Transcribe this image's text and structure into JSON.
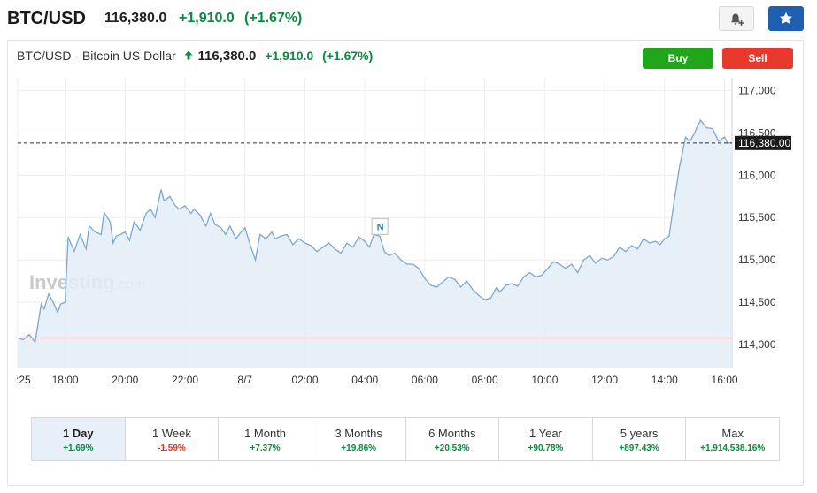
{
  "header": {
    "symbol": "BTC/USD",
    "price": "116,380.0",
    "change": "+1,910.0",
    "change_pct": "(+1.67%)"
  },
  "chart_header": {
    "name": "BTC/USD - Bitcoin US Dollar",
    "price": "116,380.0",
    "change": "+1,910.0",
    "change_pct": "(+1.67%)"
  },
  "trade": {
    "buy_label": "Buy",
    "sell_label": "Sell"
  },
  "icons": {
    "alert": "bell-plus-icon",
    "watchlist": "star-icon"
  },
  "colors": {
    "positive": "#0a8a3e",
    "negative": "#e0331f",
    "line": "#7aa8d2",
    "area": "#e3edf6",
    "buy": "#20a51b",
    "sell": "#e8392c",
    "watchlist": "#1f5fb0"
  },
  "chart_data": {
    "type": "area",
    "watermark": "Investing.com",
    "x_tick_labels": [
      ":25",
      "18:00",
      "20:00",
      "22:00",
      "8/7",
      "02:00",
      "04:00",
      "06:00",
      "08:00",
      "10:00",
      "12:00",
      "14:00",
      "16:00"
    ],
    "y_tick_labels": [
      "114,000",
      "114,500",
      "115,000",
      "115,500",
      "116,000",
      "116,500",
      "117,000"
    ],
    "y_ticks": [
      114000,
      114500,
      115000,
      115500,
      116000,
      116500,
      117000
    ],
    "ylim": [
      113730,
      117150
    ],
    "x_range_hours": [
      16.417,
      40.25
    ],
    "reference_line": 114080,
    "current_price": 116380,
    "current_price_label": "116,380.00",
    "news_marker": {
      "label": "N",
      "x": 28.5
    },
    "grid": true,
    "x": [
      16.42,
      16.6,
      16.8,
      17.0,
      17.2,
      17.3,
      17.45,
      17.6,
      17.75,
      17.85,
      18.0,
      18.1,
      18.3,
      18.5,
      18.7,
      18.8,
      19.0,
      19.2,
      19.3,
      19.5,
      19.6,
      19.7,
      19.85,
      20.0,
      20.15,
      20.3,
      20.5,
      20.7,
      20.85,
      21.0,
      21.2,
      21.3,
      21.5,
      21.65,
      21.8,
      22.0,
      22.2,
      22.3,
      22.5,
      22.7,
      22.85,
      23.0,
      23.2,
      23.35,
      23.5,
      23.7,
      23.85,
      24.0,
      24.2,
      24.35,
      24.5,
      24.7,
      24.9,
      25.0,
      25.2,
      25.4,
      25.6,
      25.8,
      26.0,
      26.2,
      26.4,
      26.6,
      26.8,
      27.0,
      27.2,
      27.4,
      27.6,
      27.8,
      28.0,
      28.15,
      28.3,
      28.5,
      28.65,
      28.8,
      29.0,
      29.2,
      29.4,
      29.6,
      29.8,
      30.0,
      30.2,
      30.4,
      30.6,
      30.8,
      31.0,
      31.2,
      31.4,
      31.6,
      31.8,
      32.0,
      32.2,
      32.4,
      32.5,
      32.7,
      32.9,
      33.1,
      33.3,
      33.5,
      33.7,
      33.9,
      34.1,
      34.3,
      34.5,
      34.7,
      34.9,
      35.1,
      35.3,
      35.5,
      35.7,
      35.9,
      36.1,
      36.3,
      36.5,
      36.7,
      36.9,
      37.1,
      37.3,
      37.5,
      37.7,
      37.85,
      38.0,
      38.15,
      38.3,
      38.5,
      38.7,
      38.85,
      39.0,
      39.2,
      39.4,
      39.6,
      39.8,
      40.0,
      40.1,
      40.25
    ],
    "values": [
      114080,
      114060,
      114120,
      114030,
      114480,
      114420,
      114600,
      114500,
      114380,
      114480,
      114500,
      115270,
      115100,
      115300,
      115130,
      115400,
      115330,
      115300,
      115560,
      115450,
      115200,
      115280,
      115300,
      115330,
      115230,
      115450,
      115350,
      115550,
      115600,
      115500,
      115830,
      115700,
      115750,
      115650,
      115600,
      115640,
      115550,
      115600,
      115530,
      115400,
      115550,
      115420,
      115380,
      115300,
      115400,
      115250,
      115320,
      115380,
      115150,
      115000,
      115300,
      115250,
      115330,
      115250,
      115280,
      115300,
      115180,
      115250,
      115200,
      115170,
      115100,
      115150,
      115200,
      115130,
      115080,
      115200,
      115150,
      115270,
      115220,
      115150,
      115300,
      115280,
      115100,
      115050,
      115080,
      115000,
      114950,
      114950,
      114900,
      114780,
      114700,
      114680,
      114740,
      114800,
      114770,
      114680,
      114750,
      114650,
      114580,
      114530,
      114550,
      114680,
      114620,
      114700,
      114720,
      114690,
      114800,
      114850,
      114800,
      114820,
      114900,
      114980,
      114950,
      114900,
      114950,
      114850,
      115000,
      115050,
      114960,
      115020,
      115000,
      115040,
      115150,
      115100,
      115170,
      115130,
      115250,
      115200,
      115220,
      115180,
      115250,
      115280,
      115650,
      116100,
      116450,
      116400,
      116500,
      116650,
      116560,
      116550,
      116400,
      116450,
      116380,
      116380
    ]
  },
  "periods": [
    {
      "label": "1 Day",
      "change": "+1.69%",
      "direction": "up",
      "active": true
    },
    {
      "label": "1 Week",
      "change": "-1.59%",
      "direction": "down",
      "active": false
    },
    {
      "label": "1 Month",
      "change": "+7.37%",
      "direction": "up",
      "active": false
    },
    {
      "label": "3 Months",
      "change": "+19.86%",
      "direction": "up",
      "active": false
    },
    {
      "label": "6 Months",
      "change": "+20.53%",
      "direction": "up",
      "active": false
    },
    {
      "label": "1 Year",
      "change": "+90.78%",
      "direction": "up",
      "active": false
    },
    {
      "label": "5 years",
      "change": "+897.43%",
      "direction": "up",
      "active": false
    },
    {
      "label": "Max",
      "change": "+1,914,538.16%",
      "direction": "up",
      "active": false
    }
  ]
}
